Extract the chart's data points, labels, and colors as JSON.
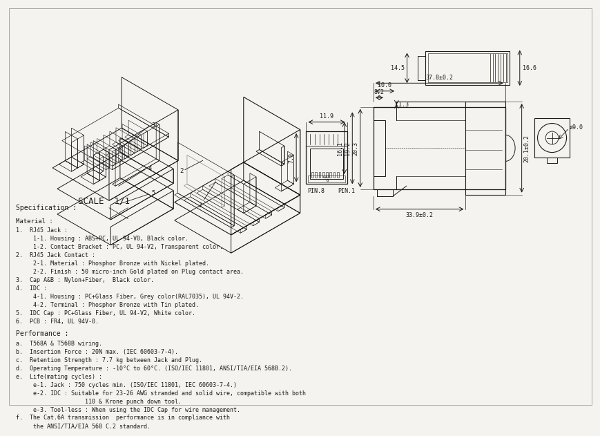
{
  "bg_color": "#f5f3ef",
  "line_color": "#1a1a1a",
  "scale_text": "SCALE  1/1",
  "spec_title": "Specification :",
  "material_title": "Material :",
  "material_lines": [
    "1.  RJ45 Jack :",
    "     1-1. Housing : ABS+PC, UL 94-V0, Black color.",
    "     1-2. Contact Bracket : PC, UL 94-V2, Transparent color.",
    "2.  RJ45 Jack Contact :",
    "     2-1. Material : Phosphor Bronze with Nickel plated.",
    "     2-2. Finish : 50 micro-inch Gold plated on Plug contact area.",
    "3.  Cap A&B : Nylon+Fiber,  Black color.",
    "4.  IDC :",
    "     4-1. Housing : PC+Glass Fiber, Grey color(RAL7035), UL 94V-2.",
    "     4-2. Terminal : Phosphor Bronze with Tin plated.",
    "5.  IDC Cap : PC+Glass Fiber, UL 94-V2, White color.",
    "6.  PCB : FR4, UL 94V-0."
  ],
  "performance_title": "Performance :",
  "performance_lines": [
    "a.  T568A & T568B wiring.",
    "b.  Insertion Force : 20N max. (IEC 60603-7-4).",
    "c.  Retention Strength : 7.7 kg between Jack and Plug.",
    "d.  Operating Temperature : -10°C to 60°C. (ISO/IEC 11801, ANSI/TIA/EIA 568B.2).",
    "e.  Life(mating cycles) :",
    "     e-1. Jack : 750 cycles min. (ISO/IEC 11801, IEC 60603-7-4.)",
    "     e-2. IDC : Suitable for 23-26 AWG stranded and solid wire, compatible with both",
    "                    110 & Krone punch down tool.",
    "     e-3. Tool-less : When using the IDC Cap for wire management.",
    "f.  The Cat.6A transmission  performance is in compliance with",
    "     the ANSI/TIA/EIA 568 C.2 standard."
  ],
  "dim_top_view": {
    "label_14_5": "14.5",
    "label_16_6": "16.6"
  },
  "dim_front_view": {
    "label_11_9": "11.9",
    "label_7_0": "7.0",
    "pin8": "PIN.8",
    "pin1": "PIN.1"
  },
  "dim_side_view": {
    "label_37_8": "37.8±0.2",
    "label_10_0": "10.0",
    "label_8_2": "8.2",
    "label_1_3": "1.3",
    "label_20_3": "20.3",
    "label_19_2": "19.2",
    "label_16_1": "16.1",
    "label_20_1": "20.1±0.2",
    "label_33_9": "33.9±0.2"
  },
  "dim_rear_view": {
    "label_9_0": "ø9.0"
  }
}
